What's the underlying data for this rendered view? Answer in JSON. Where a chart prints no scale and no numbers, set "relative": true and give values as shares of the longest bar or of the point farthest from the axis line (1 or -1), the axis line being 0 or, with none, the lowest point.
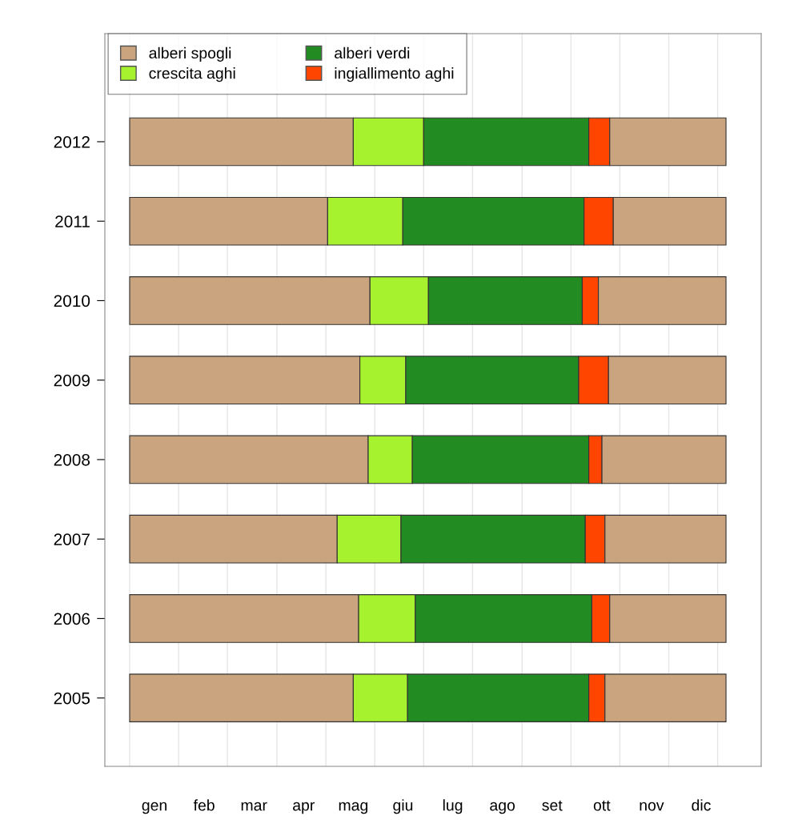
{
  "chart_data": {
    "type": "bar",
    "orientation": "horizontal",
    "stacked": true,
    "relative": true,
    "categories": [
      "2012",
      "2011",
      "2010",
      "2009",
      "2008",
      "2007",
      "2006",
      "2005"
    ],
    "series": [
      {
        "name": "alberi spogli",
        "color": "#c9a47e",
        "values": [
          0.375,
          0.332,
          0.403,
          0.386,
          0.4,
          0.348,
          0.384,
          0.375
        ]
      },
      {
        "name": "crescita aghi",
        "color": "#a6f22e",
        "values": [
          0.118,
          0.126,
          0.098,
          0.077,
          0.074,
          0.107,
          0.095,
          0.091
        ]
      },
      {
        "name": "alberi verdi",
        "color": "#228b22",
        "values": [
          0.277,
          0.304,
          0.258,
          0.29,
          0.296,
          0.309,
          0.296,
          0.304
        ]
      },
      {
        "name": "ingiallimento aghi",
        "color": "#ff4500",
        "values": [
          0.035,
          0.049,
          0.027,
          0.05,
          0.022,
          0.033,
          0.03,
          0.027
        ]
      },
      {
        "color": "#c9a47e",
        "values": [
          0.195,
          0.189,
          0.214,
          0.197,
          0.208,
          0.203,
          0.195,
          0.203
        ]
      }
    ],
    "annotations": [
      "gen",
      "feb",
      "mar",
      "apr",
      "mag",
      "giu",
      "lug",
      "ago",
      "set",
      "ott",
      "nov",
      "dic"
    ],
    "ref_lines": [
      {
        "axis": "x",
        "value": 0,
        "color": "#e6e6e6"
      },
      {
        "axis": "x",
        "value": 0.082,
        "color": "#e6e6e6"
      },
      {
        "axis": "x",
        "value": 0.164,
        "color": "#e6e6e6"
      },
      {
        "axis": "x",
        "value": 0.247,
        "color": "#e6e6e6"
      },
      {
        "axis": "x",
        "value": 0.329,
        "color": "#e6e6e6"
      },
      {
        "axis": "x",
        "value": 0.411,
        "color": "#e6e6e6"
      },
      {
        "axis": "x",
        "value": 0.493,
        "color": "#e6e6e6"
      },
      {
        "axis": "x",
        "value": 0.575,
        "color": "#e6e6e6"
      },
      {
        "axis": "x",
        "value": 0.658,
        "color": "#e6e6e6"
      },
      {
        "axis": "x",
        "value": 0.74,
        "color": "#e6e6e6"
      },
      {
        "axis": "x",
        "value": 0.822,
        "color": "#e6e6e6"
      },
      {
        "axis": "x",
        "value": 0.904,
        "color": "#e6e6e6"
      },
      {
        "axis": "x",
        "value": 0.986,
        "color": "#e6e6e6"
      }
    ],
    "legend": "top left",
    "grid": false
  }
}
